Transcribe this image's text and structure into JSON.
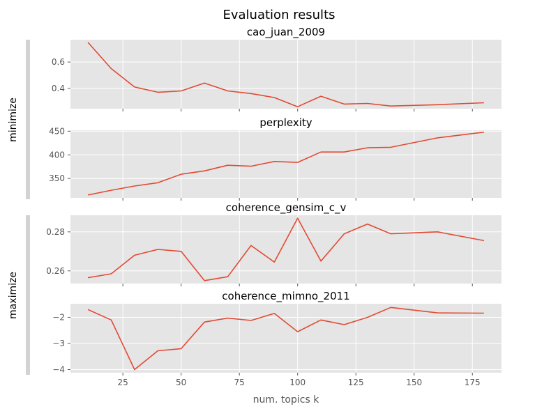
{
  "figure": {
    "title": "Evaluation results"
  },
  "groups": [
    {
      "label": "minimize"
    },
    {
      "label": "maximize"
    }
  ],
  "chart_data": [
    {
      "type": "line",
      "title": "cao_juan_2009",
      "x": [
        10,
        20,
        30,
        40,
        50,
        60,
        70,
        80,
        90,
        100,
        110,
        120,
        130,
        140,
        160,
        180
      ],
      "series": [
        {
          "values": [
            0.75,
            0.55,
            0.41,
            0.37,
            0.38,
            0.44,
            0.38,
            0.36,
            0.33,
            0.26,
            0.34,
            0.28,
            0.285,
            0.265,
            0.275,
            0.29
          ]
        }
      ],
      "xlim": [
        2.5,
        187.5
      ],
      "ylim": [
        0.245,
        0.77
      ],
      "yticks": [
        0.4,
        0.6
      ],
      "ytick_labels": [
        "0.4",
        "0.6"
      ],
      "xticks": [
        25,
        50,
        75,
        100,
        125,
        150,
        175
      ],
      "xtick_labels": [],
      "line_color": "#E24A33",
      "grid": true,
      "group": "minimize"
    },
    {
      "type": "line",
      "title": "perplexity",
      "x": [
        10,
        20,
        30,
        40,
        50,
        60,
        70,
        80,
        90,
        100,
        110,
        120,
        130,
        140,
        160,
        180
      ],
      "series": [
        {
          "values": [
            315,
            325,
            334,
            341,
            359,
            366,
            378,
            376,
            386,
            384,
            406,
            406,
            415,
            416,
            436,
            448
          ]
        }
      ],
      "xlim": [
        2.5,
        187.5
      ],
      "ylim": [
        309,
        452
      ],
      "yticks": [
        350,
        400,
        450
      ],
      "ytick_labels": [
        "350",
        "400",
        "450"
      ],
      "xticks": [
        25,
        50,
        75,
        100,
        125,
        150,
        175
      ],
      "xtick_labels": [],
      "line_color": "#E24A33",
      "grid": true,
      "group": "minimize"
    },
    {
      "type": "line",
      "title": "coherence_gensim_c_v",
      "x": [
        10,
        20,
        30,
        40,
        50,
        60,
        70,
        80,
        90,
        100,
        110,
        120,
        130,
        140,
        160,
        180
      ],
      "series": [
        {
          "values": [
            0.2565,
            0.2585,
            0.268,
            0.271,
            0.27,
            0.255,
            0.257,
            0.273,
            0.2645,
            0.287,
            0.265,
            0.279,
            0.284,
            0.279,
            0.28,
            0.2755
          ]
        }
      ],
      "xlim": [
        2.5,
        187.5
      ],
      "ylim": [
        0.2535,
        0.2885
      ],
      "yticks": [
        0.26,
        0.28
      ],
      "ytick_labels": [
        "0.26",
        "0.28"
      ],
      "xticks": [
        25,
        50,
        75,
        100,
        125,
        150,
        175
      ],
      "xtick_labels": [],
      "line_color": "#E24A33",
      "grid": true,
      "group": "maximize"
    },
    {
      "type": "line",
      "title": "coherence_mimno_2011",
      "x": [
        10,
        20,
        30,
        40,
        50,
        60,
        70,
        80,
        90,
        100,
        110,
        120,
        130,
        140,
        160,
        180
      ],
      "series": [
        {
          "values": [
            -1.7,
            -2.1,
            -4.0,
            -3.28,
            -3.2,
            -2.18,
            -2.03,
            -2.12,
            -1.85,
            -2.55,
            -2.1,
            -2.28,
            -2.0,
            -1.62,
            -1.83,
            -1.84
          ]
        }
      ],
      "xlim": [
        2.5,
        187.5
      ],
      "ylim": [
        -4.12,
        -1.48
      ],
      "yticks": [
        -4,
        -3,
        -2
      ],
      "ytick_labels": [
        "−4",
        "−3",
        "−2"
      ],
      "xticks": [
        25,
        50,
        75,
        100,
        125,
        150,
        175
      ],
      "xtick_labels": [
        "25",
        "50",
        "75",
        "100",
        "125",
        "150",
        "175"
      ],
      "xlabel": "num. topics k",
      "line_color": "#E24A33",
      "grid": true,
      "group": "maximize"
    }
  ]
}
